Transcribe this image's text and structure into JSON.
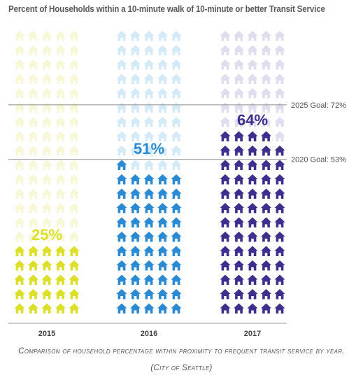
{
  "chart_data": {
    "type": "pictograph",
    "title": "Percent of Households within a 10-minute walk of 10-minute or better Transit Service",
    "categories": [
      "2015",
      "2016",
      "2017"
    ],
    "series": [
      {
        "category": "2015",
        "value": 25,
        "label": "25%"
      },
      {
        "category": "2016",
        "value": 51,
        "label": "51%"
      },
      {
        "category": "2017",
        "value": 64,
        "label": "64%"
      }
    ],
    "unit": "%",
    "icon": "house-icon",
    "icons_per_column": 100,
    "reference_lines": [
      {
        "label": "2025 Goal: 72%",
        "value": 72
      },
      {
        "label": "2020 Goal: 53%",
        "value": 53
      }
    ],
    "colors": {
      "2015_fill": "#dde02a",
      "2015_empty": "#f8f7d8",
      "2016_fill": "#2a8ad3",
      "2016_empty": "#d5eaf7",
      "2017_fill": "#3f2e8e",
      "2017_empty": "#e2dcef",
      "label_2015": "#dde02a",
      "label_2016": "#2a8ad3",
      "label_2017": "#3f2e8e",
      "goal_line": "#9a9a9a",
      "axis": "#9a9a9a"
    }
  },
  "caption": {
    "line1": "Comparison of household percentage within proximity to frequent transit service by year.",
    "line2": "(City of Seattle)"
  }
}
